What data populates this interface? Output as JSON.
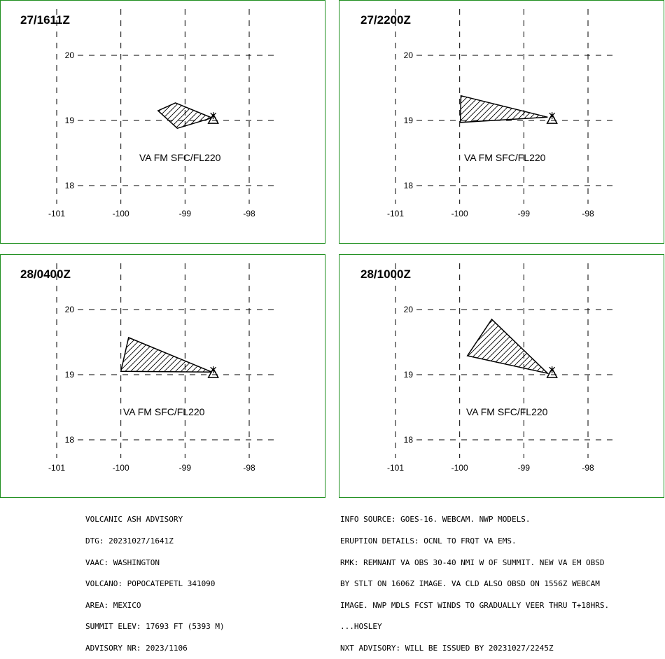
{
  "panels": [
    {
      "time": "27/1611Z",
      "label": "VA FM SFC/FL220",
      "polygon": [
        [
          -99.42,
          19.15
        ],
        [
          -99.15,
          19.27
        ],
        [
          -98.58,
          19.04
        ],
        [
          -99.12,
          18.88
        ]
      ],
      "volcano": [
        -98.56,
        19.02
      ]
    },
    {
      "time": "27/2200Z",
      "label": "VA FM SFC/FL220",
      "polygon": [
        [
          -99.98,
          19.38
        ],
        [
          -98.63,
          19.05
        ],
        [
          -99.99,
          18.97
        ]
      ],
      "volcano": [
        -98.56,
        19.02
      ]
    },
    {
      "time": "28/0400Z",
      "label": "VA FM SFC/FL220",
      "polygon": [
        [
          -99.88,
          19.57
        ],
        [
          -98.58,
          19.04
        ],
        [
          -100.0,
          19.05
        ]
      ],
      "volcano": [
        -98.56,
        19.02
      ]
    },
    {
      "time": "28/1000Z",
      "label": "VA FM SFC/FL220",
      "polygon": [
        [
          -99.5,
          19.85
        ],
        [
          -98.63,
          19.02
        ],
        [
          -99.88,
          19.29
        ]
      ],
      "volcano": [
        -98.56,
        19.02
      ]
    }
  ],
  "map": {
    "lat_ticks": [
      "20",
      "19",
      "18"
    ],
    "lon_ticks": [
      "-101",
      "-100",
      "-99",
      "-98"
    ],
    "lat_values": [
      20,
      19,
      18
    ],
    "lon_values": [
      -101,
      -100,
      -99,
      -98
    ]
  },
  "advisory_left": [
    "VOLCANIC ASH ADVISORY",
    "DTG: 20231027/1641Z",
    "VAAC: WASHINGTON",
    "VOLCANO: POPOCATEPETL 341090",
    "AREA: MEXICO",
    "SUMMIT ELEV: 17693 FT (5393 M)",
    "ADVISORY NR: 2023/1106"
  ],
  "advisory_right": [
    "INFO SOURCE: GOES-16. WEBCAM. NWP MODELS.",
    "ERUPTION DETAILS: OCNL TO FRQT VA EMS.",
    "RMK: REMNANT VA OBS 30-40 NMI W OF SUMMIT. NEW VA EM OBSD",
    "BY STLT ON 1606Z IMAGE. VA CLD ALSO OBSD ON 1556Z WEBCAM",
    "IMAGE. NWP MDLS FCST WINDS TO GRADUALLY VEER THRU T+18HRS.",
    "...HOSLEY",
    "NXT ADVISORY: WILL BE ISSUED BY 20231027/2245Z"
  ],
  "colors": {
    "border": "#1f8f1f",
    "lines": "#000000"
  }
}
